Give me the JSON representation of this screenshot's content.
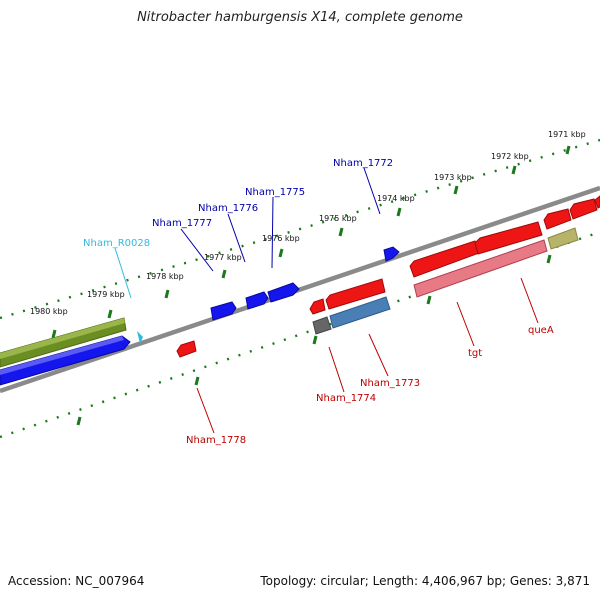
{
  "title": "Nitrobacter hamburgensis X14, complete genome",
  "footer": {
    "accession": "Accession: NC_007964",
    "summary": "Topology: circular; Length: 4,406,967 bp; Genes: 3,871"
  },
  "colors": {
    "backbone": "#888888",
    "tick": "#1a7a1a",
    "forward_gene": "#1515ee",
    "reverse_gene": "#ee1515",
    "forward_label": "#0000aa",
    "reverse_label": "#bb0000",
    "rna_label": "#33bbdd",
    "olive_gene": "#6b8e23",
    "pale_olive": "#b7b46a",
    "steel_gene": "#4a7fb5",
    "grey_gene": "#666666",
    "pink_gene": "#e87a86"
  },
  "scale": {
    "ticks": [
      "1971 kbp",
      "1972 kbp",
      "1973 kbp",
      "1974 kbp",
      "1975 kbp",
      "1976 kbp",
      "1977 kbp",
      "1978 kbp",
      "1979 kbp",
      "1980 kbp"
    ]
  },
  "genes": {
    "forward": [
      "Nham_1772",
      "Nham_1775",
      "Nham_1776",
      "Nham_1777"
    ],
    "rna": [
      "Nham_R0028"
    ],
    "reverse": [
      "Nham_1773",
      "Nham_1774",
      "Nham_1778",
      "tgt",
      "queA"
    ]
  }
}
